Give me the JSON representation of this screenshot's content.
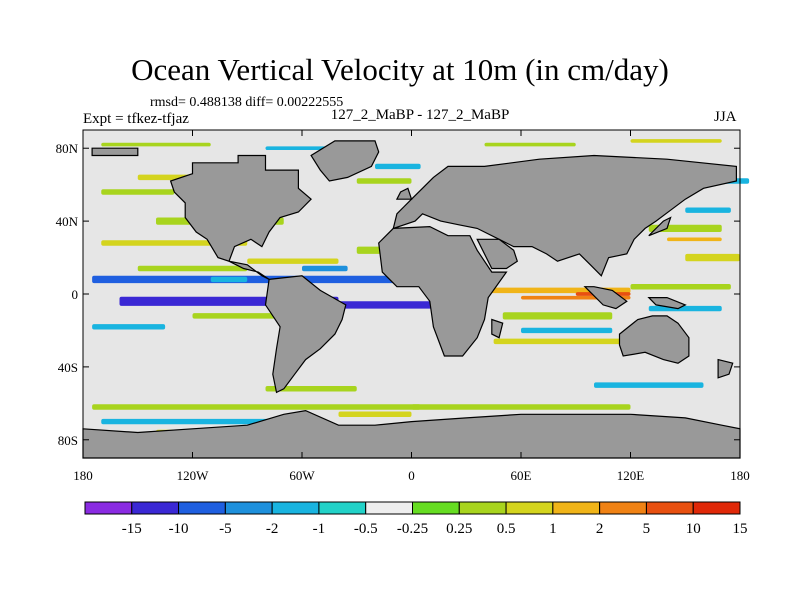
{
  "title": "Ocean Vertical Velocity at 10m (in cm/day)",
  "stats_text": "rmsd= 0.488138 diff= 0.00222555",
  "expt_text": "Expt = tfkez-tfjaz",
  "comparison_text": "127_2_MaBP - 127_2_MaBP",
  "season": "JJA",
  "map": {
    "lon_range": [
      -180,
      180
    ],
    "lat_range": [
      -90,
      90
    ],
    "land_color": "#999999",
    "ocean_neutral_color": "#e6e6e6",
    "x_ticks": [
      {
        "lon": -180,
        "label": "180"
      },
      {
        "lon": -120,
        "label": "120W"
      },
      {
        "lon": -60,
        "label": "60W"
      },
      {
        "lon": 0,
        "label": "0"
      },
      {
        "lon": 60,
        "label": "60E"
      },
      {
        "lon": 120,
        "label": "120E"
      },
      {
        "lon": 180,
        "label": "180"
      }
    ],
    "y_ticks": [
      {
        "lat": 80,
        "label": "80N"
      },
      {
        "lat": 40,
        "label": "40N"
      },
      {
        "lat": 0,
        "label": "0"
      },
      {
        "lat": -40,
        "label": "40S"
      },
      {
        "lat": -80,
        "label": "80S"
      }
    ]
  },
  "colorbar": {
    "colors": [
      "#8a2be2",
      "#3a28d4",
      "#1f5fe0",
      "#1e90dc",
      "#19b4e0",
      "#22d2c8",
      "#eeeeee",
      "#66dd22",
      "#a8d41e",
      "#d4d41e",
      "#f0b418",
      "#f08214",
      "#e85010",
      "#e02808"
    ],
    "labels": [
      "-15",
      "-10",
      "-5",
      "-2",
      "-1",
      "-0.5",
      "-0.25",
      "0.25",
      "0.5",
      "1",
      "2",
      "5",
      "10",
      "15"
    ]
  }
}
